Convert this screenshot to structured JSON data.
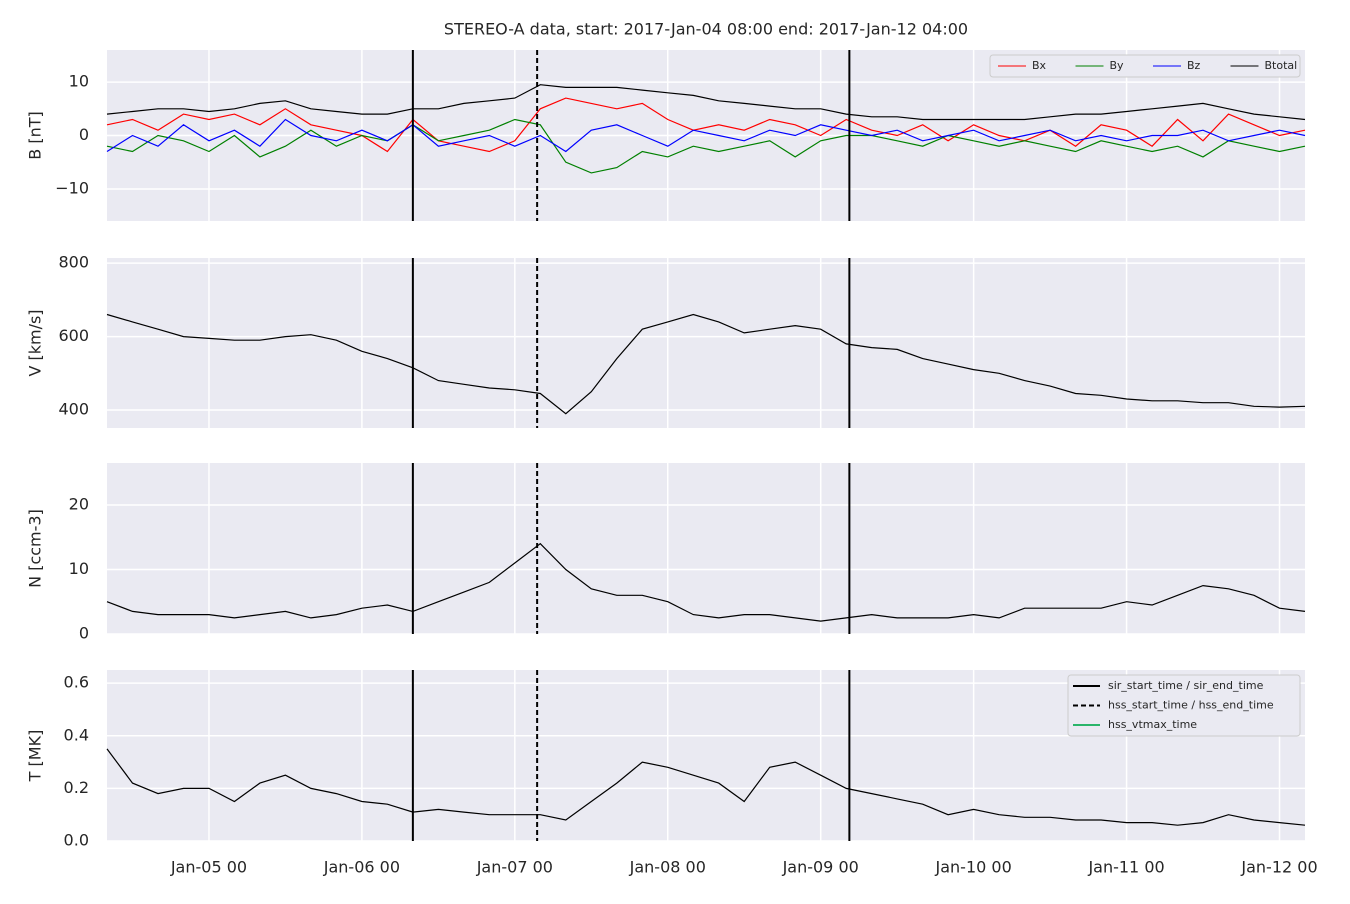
{
  "chart_data": [
    {
      "type": "line",
      "title": "STEREO-A data, start: 2017-Jan-04 08:00  end: 2017-Jan-12 04:00",
      "y_label": "B [nT]",
      "x": [
        "2017-01-04 08:00",
        "2017-01-04 12:00",
        "2017-01-04 16:00",
        "2017-01-04 20:00",
        "2017-01-05 00:00",
        "2017-01-05 04:00",
        "2017-01-05 08:00",
        "2017-01-05 12:00",
        "2017-01-05 16:00",
        "2017-01-05 20:00",
        "2017-01-06 00:00",
        "2017-01-06 04:00",
        "2017-01-06 08:00",
        "2017-01-06 12:00",
        "2017-01-06 16:00",
        "2017-01-06 20:00",
        "2017-01-07 00:00",
        "2017-01-07 04:00",
        "2017-01-07 08:00",
        "2017-01-07 12:00",
        "2017-01-07 16:00",
        "2017-01-07 20:00",
        "2017-01-08 00:00",
        "2017-01-08 04:00",
        "2017-01-08 08:00",
        "2017-01-08 12:00",
        "2017-01-08 16:00",
        "2017-01-08 20:00",
        "2017-01-09 00:00",
        "2017-01-09 04:00",
        "2017-01-09 08:00",
        "2017-01-09 12:00",
        "2017-01-09 16:00",
        "2017-01-09 20:00",
        "2017-01-10 00:00",
        "2017-01-10 04:00",
        "2017-01-10 08:00",
        "2017-01-10 12:00",
        "2017-01-10 16:00",
        "2017-01-10 20:00",
        "2017-01-11 00:00",
        "2017-01-11 04:00",
        "2017-01-11 08:00",
        "2017-01-11 12:00",
        "2017-01-11 16:00",
        "2017-01-11 20:00",
        "2017-01-12 00:00",
        "2017-01-12 04:00"
      ],
      "xlim": [
        "2017-01-04 08:00",
        "2017-01-12 04:00"
      ],
      "ylim": [
        -16,
        16
      ],
      "yticks": [
        {
          "value": -10,
          "label": "−10"
        },
        0,
        10
      ],
      "grid": true,
      "legend": "upper right",
      "series": [
        {
          "name": "Bx",
          "color": "#ff0000",
          "values": [
            2,
            3,
            1,
            4,
            3,
            4,
            2,
            5,
            2,
            1,
            0,
            -3,
            3,
            -1,
            -2,
            -3,
            -1,
            5,
            7,
            6,
            5,
            6,
            3,
            1,
            2,
            1,
            3,
            2,
            0,
            3,
            1,
            0,
            2,
            -1,
            2,
            0,
            -1,
            1,
            -2,
            2,
            1,
            -2,
            3,
            -1,
            4,
            2,
            0,
            1
          ]
        },
        {
          "name": "By",
          "color": "#008000",
          "values": [
            -2,
            -3,
            0,
            -1,
            -3,
            0,
            -4,
            -2,
            1,
            -2,
            0,
            -1,
            2,
            -1,
            0,
            1,
            3,
            2,
            -5,
            -7,
            -6,
            -3,
            -4,
            -2,
            -3,
            -2,
            -1,
            -4,
            -1,
            0,
            0,
            -1,
            -2,
            0,
            -1,
            -2,
            -1,
            -2,
            -3,
            -1,
            -2,
            -3,
            -2,
            -4,
            -1,
            -2,
            -3,
            -2
          ]
        },
        {
          "name": "Bz",
          "color": "#0000ff",
          "values": [
            -3,
            0,
            -2,
            2,
            -1,
            1,
            -2,
            3,
            0,
            -1,
            1,
            -1,
            2,
            -2,
            -1,
            0,
            -2,
            0,
            -3,
            1,
            2,
            0,
            -2,
            1,
            0,
            -1,
            1,
            0,
            2,
            1,
            0,
            1,
            -1,
            0,
            1,
            -1,
            0,
            1,
            -1,
            0,
            -1,
            0,
            0,
            1,
            -1,
            0,
            1,
            0
          ]
        },
        {
          "name": "Btotal",
          "color": "#000000",
          "values": [
            4,
            4.5,
            5,
            5,
            4.5,
            5,
            6,
            6.5,
            5,
            4.5,
            4,
            4,
            5,
            5,
            6,
            6.5,
            7,
            9.5,
            9,
            9,
            9,
            8.5,
            8,
            7.5,
            6.5,
            6,
            5.5,
            5,
            5,
            4,
            3.5,
            3.5,
            3,
            3,
            3,
            3,
            3,
            3.5,
            4,
            4,
            4.5,
            5,
            5.5,
            6,
            5,
            4,
            3.5,
            3
          ]
        }
      ]
    },
    {
      "type": "line",
      "y_label": "V [km/s]",
      "ylim": [
        351,
        814
      ],
      "yticks": [
        400,
        600,
        800
      ],
      "grid": true,
      "series": [
        {
          "color": "#000000",
          "values": [
            660,
            640,
            620,
            600,
            595,
            590,
            590,
            600,
            605,
            590,
            560,
            540,
            515,
            480,
            470,
            460,
            455,
            445,
            390,
            450,
            540,
            620,
            640,
            660,
            640,
            610,
            620,
            630,
            620,
            580,
            570,
            565,
            540,
            525,
            510,
            500,
            480,
            465,
            445,
            440,
            430,
            425,
            425,
            420,
            420,
            410,
            408,
            410
          ]
        }
      ]
    },
    {
      "type": "line",
      "y_label": "N [ccm-3]",
      "ylim": [
        0,
        26.5
      ],
      "yticks": [
        0,
        10,
        20
      ],
      "grid": true,
      "series": [
        {
          "color": "#000000",
          "values": [
            5,
            3.5,
            3,
            3,
            3,
            2.5,
            3,
            3.5,
            2.5,
            3,
            4,
            4.5,
            3.5,
            5,
            6.5,
            8,
            11,
            14,
            10,
            7,
            6,
            6,
            5,
            3,
            2.5,
            3,
            3,
            2.5,
            2,
            2.5,
            3,
            2.5,
            2.5,
            2.5,
            3,
            2.5,
            4,
            4,
            4,
            4,
            5,
            4.5,
            6,
            7.5,
            7,
            6,
            4,
            3.5
          ]
        }
      ]
    },
    {
      "type": "line",
      "y_label": "T [MK]",
      "ylim": [
        0,
        0.65
      ],
      "yticks": [
        {
          "value": 0,
          "label": "0.0"
        },
        0.2,
        0.4,
        0.6
      ],
      "grid": true,
      "legend": "upper right",
      "xticks": [
        {
          "value": "2017-01-05 00:00",
          "label": "Jan-05 00"
        },
        {
          "value": "2017-01-06 00:00",
          "label": "Jan-06 00"
        },
        {
          "value": "2017-01-07 00:00",
          "label": "Jan-07 00"
        },
        {
          "value": "2017-01-08 00:00",
          "label": "Jan-08 00"
        },
        {
          "value": "2017-01-09 00:00",
          "label": "Jan-09 00"
        },
        {
          "value": "2017-01-10 00:00",
          "label": "Jan-10 00"
        },
        {
          "value": "2017-01-11 00:00",
          "label": "Jan-11 00"
        },
        {
          "value": "2017-01-12 00:00",
          "label": "Jan-12 00"
        }
      ],
      "series": [
        {
          "color": "#000000",
          "values": [
            0.35,
            0.22,
            0.18,
            0.2,
            0.2,
            0.15,
            0.22,
            0.25,
            0.2,
            0.18,
            0.15,
            0.14,
            0.11,
            0.12,
            0.11,
            0.1,
            0.1,
            0.1,
            0.08,
            0.15,
            0.22,
            0.3,
            0.28,
            0.25,
            0.22,
            0.15,
            0.28,
            0.3,
            0.25,
            0.2,
            0.18,
            0.16,
            0.14,
            0.1,
            0.12,
            0.1,
            0.09,
            0.09,
            0.08,
            0.08,
            0.07,
            0.07,
            0.06,
            0.07,
            0.1,
            0.08,
            0.07,
            0.06
          ]
        }
      ],
      "markers": [
        {
          "name": "sir_start_time / sir_end_time",
          "color": "#000000",
          "style": "solid",
          "times": [
            "2017-01-06 08:00",
            "2017-01-09 04:30"
          ]
        },
        {
          "name": "hss_start_time / hss_end_time",
          "color": "#000000",
          "style": "dashed",
          "times": [
            "2017-01-07 03:30"
          ]
        },
        {
          "name": "hss_vtmax_time",
          "color": "#2ab56a",
          "style": "solid",
          "times": []
        }
      ]
    }
  ]
}
